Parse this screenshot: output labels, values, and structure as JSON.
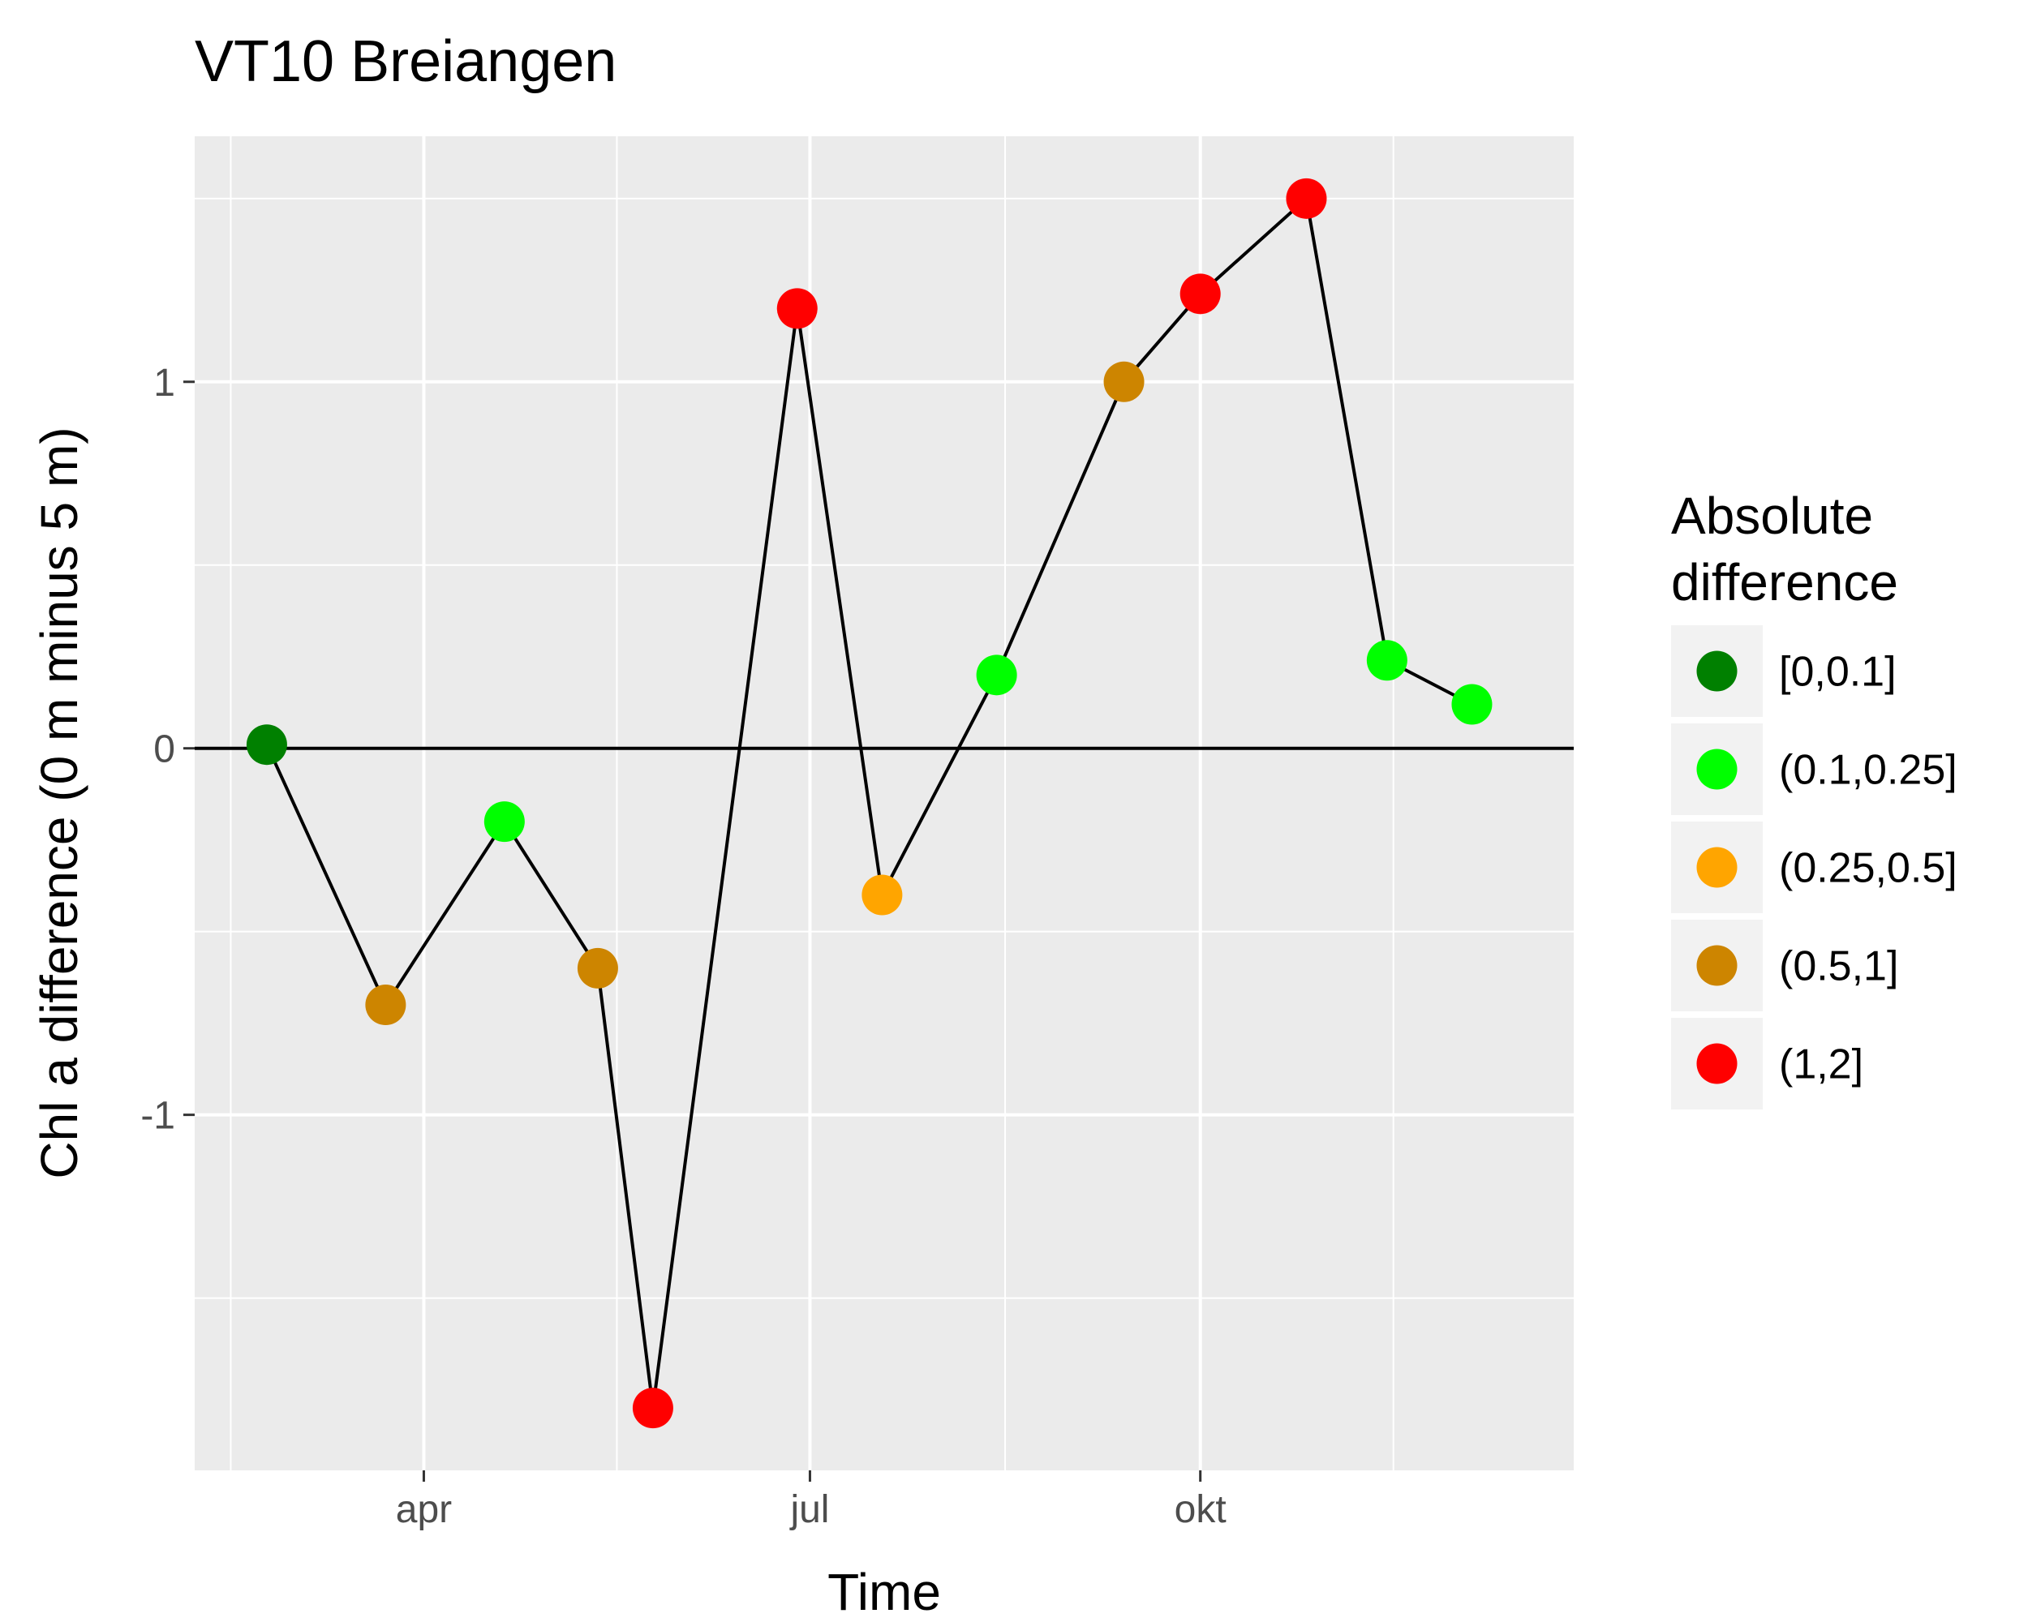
{
  "chart_data": {
    "type": "line",
    "title": "VT10 Breiangen",
    "xlabel": "Time",
    "ylabel": "Chl a difference (0 m minus 5 m)",
    "x_ticks": [
      {
        "label": "apr",
        "date": "2017-04-01"
      },
      {
        "label": "jul",
        "date": "2017-07-01"
      },
      {
        "label": "okt",
        "date": "2017-10-01"
      }
    ],
    "y_ticks": [
      -1,
      0,
      1
    ],
    "xlim": [
      "2017-02-06",
      "2017-12-28"
    ],
    "ylim": [
      -1.97,
      1.67
    ],
    "grid": true,
    "reference_line": {
      "y": 0
    },
    "line_color": "#000000",
    "legend": {
      "title_lines": [
        "Absolute",
        "difference"
      ],
      "position": "right",
      "items": [
        {
          "label": "[0,0.1]",
          "color": "#008000"
        },
        {
          "label": "(0.1,0.25]",
          "color": "#00FF00"
        },
        {
          "label": "(0.25,0.5]",
          "color": "#FFA500"
        },
        {
          "label": "(0.5,1]",
          "color": "#CD8500"
        },
        {
          "label": "(1,2]",
          "color": "#FF0000"
        }
      ]
    },
    "series": [
      {
        "points": [
          {
            "x": "2017-02-23",
            "y": 0.01,
            "class": "[0,0.1]"
          },
          {
            "x": "2017-03-23",
            "y": -0.7,
            "class": "(0.5,1]"
          },
          {
            "x": "2017-04-20",
            "y": -0.2,
            "class": "(0.1,0.25]"
          },
          {
            "x": "2017-05-12",
            "y": -0.6,
            "class": "(0.5,1]"
          },
          {
            "x": "2017-05-25",
            "y": -1.8,
            "class": "(1,2]"
          },
          {
            "x": "2017-06-28",
            "y": 1.2,
            "class": "(1,2]"
          },
          {
            "x": "2017-07-18",
            "y": -0.4,
            "class": "(0.25,0.5]"
          },
          {
            "x": "2017-08-14",
            "y": 0.2,
            "class": "(0.1,0.25]"
          },
          {
            "x": "2017-09-13",
            "y": 1.0,
            "class": "(0.5,1]"
          },
          {
            "x": "2017-10-01",
            "y": 1.24,
            "class": "(1,2]"
          },
          {
            "x": "2017-10-26",
            "y": 1.5,
            "class": "(1,2]"
          },
          {
            "x": "2017-11-14",
            "y": 0.24,
            "class": "(0.1,0.25]"
          },
          {
            "x": "2017-12-04",
            "y": 0.12,
            "class": "(0.1,0.25]"
          }
        ]
      }
    ]
  }
}
